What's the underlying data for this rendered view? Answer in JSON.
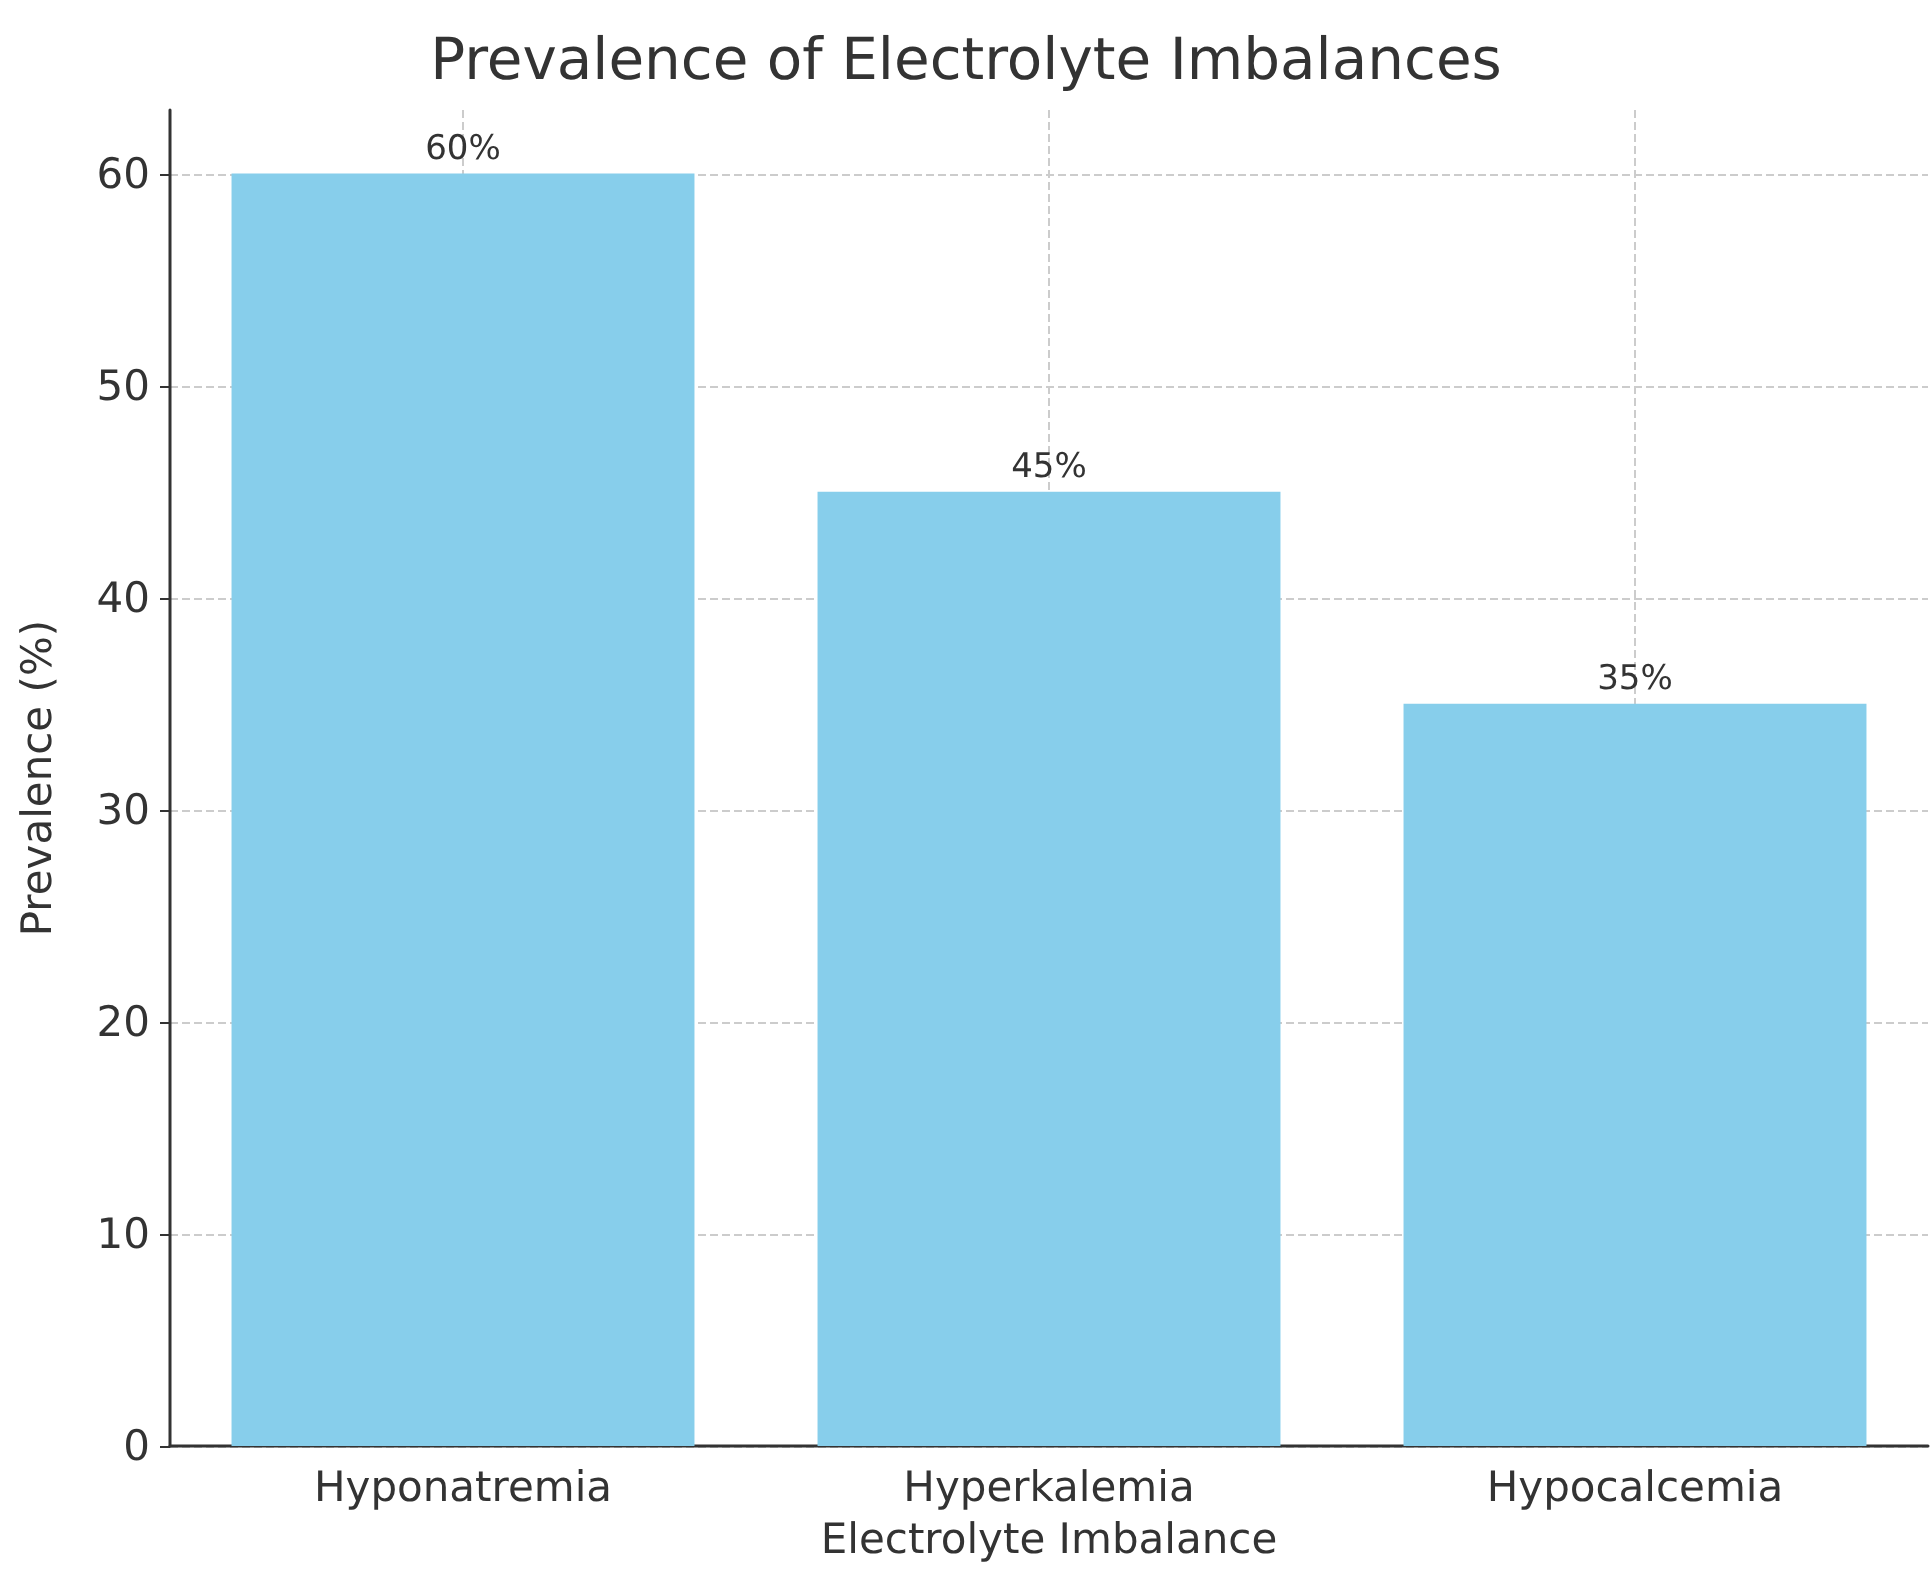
{
  "chart_data": {
    "type": "bar",
    "title": "Prevalence of Electrolyte Imbalances",
    "xlabel": "Electrolyte Imbalance",
    "ylabel": "Prevalence (%)",
    "categories": [
      "Hyponatremia",
      "Hyperkalemia",
      "Hypocalcemia"
    ],
    "values": [
      60,
      45,
      35
    ],
    "color": "#87ceeb",
    "value_labels": [
      "60%",
      "45%",
      "35%"
    ],
    "ylim": [
      0,
      63
    ],
    "yticks": [
      0,
      10,
      20,
      30,
      40,
      50,
      60
    ],
    "grid": true
  }
}
